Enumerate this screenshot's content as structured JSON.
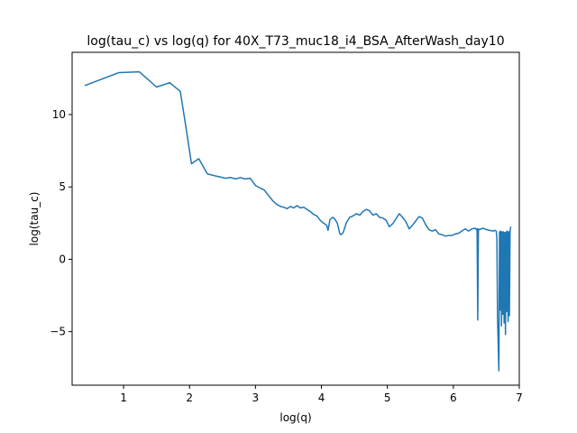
{
  "chart_data": {
    "type": "line",
    "title": "log(tau_c) vs log(q) for 40X_T73_muc18_i4_BSA_AfterWash_day10",
    "xlabel": "log(q)",
    "ylabel": "log(tau_c)",
    "xlim": [
      0.22,
      7.0
    ],
    "ylim": [
      -8.7,
      14.3
    ],
    "xticks": [
      1,
      2,
      3,
      4,
      5,
      6,
      7
    ],
    "yticks": [
      -5,
      0,
      5,
      10
    ],
    "xtick_labels": [
      "1",
      "2",
      "3",
      "4",
      "5",
      "6",
      "7"
    ],
    "ytick_labels": [
      "−5",
      "0",
      "5",
      "10"
    ],
    "grid": false,
    "series": [
      {
        "color": "#1f77b4",
        "x": [
          0.41,
          0.93,
          1.24,
          1.5,
          1.7,
          1.86,
          1.95,
          2.03,
          2.14,
          2.27,
          2.4,
          2.55,
          2.62,
          2.7,
          2.77,
          2.84,
          2.92,
          3.0,
          3.06,
          3.13,
          3.2,
          3.26,
          3.32,
          3.38,
          3.43,
          3.48,
          3.53,
          3.58,
          3.63,
          3.68,
          3.73,
          3.78,
          3.83,
          3.88,
          3.93,
          3.98,
          4.03,
          4.08,
          4.1,
          4.13,
          4.17,
          4.2,
          4.24,
          4.28,
          4.3,
          4.33,
          4.38,
          4.43,
          4.48,
          4.53,
          4.58,
          4.63,
          4.68,
          4.73,
          4.78,
          4.83,
          4.88,
          4.93,
          4.98,
          5.03,
          5.08,
          5.13,
          5.18,
          5.23,
          5.28,
          5.33,
          5.38,
          5.43,
          5.48,
          5.53,
          5.58,
          5.63,
          5.68,
          5.73,
          5.78,
          5.83,
          5.88,
          5.93,
          5.98,
          6.03,
          6.08,
          6.13,
          6.18,
          6.23,
          6.28,
          6.33,
          6.35,
          6.36,
          6.37,
          6.38,
          6.4,
          6.45,
          6.5,
          6.55,
          6.6,
          6.63,
          6.65,
          6.66,
          6.67,
          6.68,
          6.69,
          6.7,
          6.71,
          6.72,
          6.73,
          6.74,
          6.75,
          6.76,
          6.77,
          6.78,
          6.79,
          6.8,
          6.81,
          6.82,
          6.83,
          6.84,
          6.85,
          6.86,
          6.87
        ],
        "y": [
          12.0,
          12.9,
          12.95,
          11.9,
          12.2,
          11.6,
          9.0,
          6.6,
          6.95,
          5.9,
          5.75,
          5.6,
          5.65,
          5.55,
          5.65,
          5.55,
          5.6,
          5.1,
          4.95,
          4.8,
          4.4,
          4.05,
          3.8,
          3.65,
          3.6,
          3.5,
          3.65,
          3.55,
          3.7,
          3.55,
          3.6,
          3.45,
          3.3,
          3.1,
          3.0,
          2.7,
          2.5,
          2.35,
          2.0,
          2.75,
          2.9,
          2.8,
          2.5,
          1.75,
          1.7,
          1.85,
          2.55,
          2.9,
          3.0,
          3.15,
          3.05,
          3.3,
          3.45,
          3.35,
          3.05,
          3.15,
          2.9,
          2.85,
          2.7,
          2.25,
          2.45,
          2.8,
          3.15,
          2.9,
          2.6,
          2.1,
          2.35,
          2.65,
          2.95,
          2.85,
          2.4,
          2.05,
          1.95,
          2.05,
          1.75,
          1.7,
          1.6,
          1.65,
          1.65,
          1.75,
          1.8,
          1.95,
          2.1,
          1.95,
          2.1,
          2.15,
          2.05,
          2.1,
          -4.2,
          2.1,
          2.05,
          2.15,
          2.05,
          2.0,
          1.95,
          2.0,
          1.95,
          1.5,
          -4.0,
          -5.8,
          -7.7,
          1.9,
          -3.5,
          1.95,
          -4.6,
          1.9,
          -3.8,
          1.9,
          -4.4,
          1.85,
          -5.2,
          1.9,
          -3.6,
          1.95,
          -4.3,
          1.9,
          -3.9,
          1.95,
          2.25
        ]
      }
    ]
  }
}
